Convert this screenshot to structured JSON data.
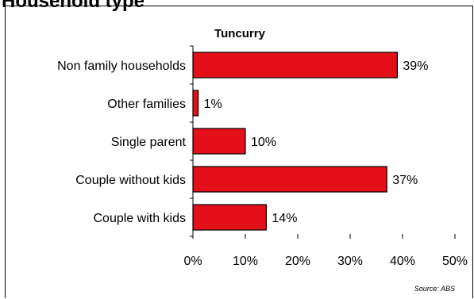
{
  "page": {
    "title": "Household type"
  },
  "chart_data": {
    "type": "bar",
    "orientation": "horizontal",
    "title": "Tuncurry",
    "categories": [
      "Non family households",
      "Other families",
      "Single parent",
      "Couple without kids",
      "Couple with kids"
    ],
    "values": [
      39,
      1,
      10,
      37,
      14
    ],
    "value_labels": [
      "39%",
      "1%",
      "10%",
      "37%",
      "14%"
    ],
    "xlim": [
      0,
      50
    ],
    "x_ticks": [
      0,
      10,
      20,
      30,
      40,
      50
    ],
    "x_tick_labels": [
      "0%",
      "10%",
      "20%",
      "30%",
      "40%",
      "50%"
    ],
    "bar_color": "#E3101A",
    "grid": false,
    "source": "Source: ABS"
  }
}
